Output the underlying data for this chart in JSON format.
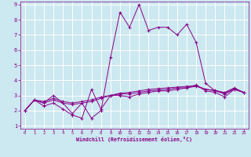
{
  "xlabel": "Windchill (Refroidissement éolien,°C)",
  "xlim": [
    -0.5,
    23.5
  ],
  "ylim": [
    0.8,
    9.2
  ],
  "xticks": [
    0,
    1,
    2,
    3,
    4,
    5,
    6,
    7,
    8,
    9,
    10,
    11,
    12,
    13,
    14,
    15,
    16,
    17,
    18,
    19,
    20,
    21,
    22,
    23
  ],
  "yticks": [
    1,
    2,
    3,
    4,
    5,
    6,
    7,
    8,
    9
  ],
  "bg_color": "#cce8f0",
  "grid_color": "#ffffff",
  "line_color": "#880088",
  "series": [
    [
      2.0,
      2.7,
      2.3,
      2.5,
      2.1,
      1.7,
      1.5,
      3.4,
      2.1,
      3.0,
      3.0,
      2.9,
      3.1,
      3.2,
      3.3,
      3.3,
      3.4,
      3.5,
      3.7,
      3.3,
      3.2,
      2.9,
      3.4,
      3.2
    ],
    [
      2.0,
      2.7,
      2.5,
      2.7,
      2.5,
      2.4,
      2.5,
      2.6,
      2.8,
      3.0,
      3.1,
      3.1,
      3.2,
      3.3,
      3.35,
      3.4,
      3.5,
      3.5,
      3.6,
      3.4,
      3.3,
      3.1,
      3.4,
      3.2
    ],
    [
      2.0,
      2.7,
      2.6,
      2.8,
      2.6,
      2.5,
      2.6,
      2.7,
      2.9,
      3.0,
      3.15,
      3.2,
      3.3,
      3.4,
      3.45,
      3.5,
      3.55,
      3.6,
      3.65,
      3.4,
      3.35,
      3.15,
      3.45,
      3.2
    ],
    [
      2.0,
      2.7,
      2.5,
      3.0,
      2.5,
      1.8,
      2.5,
      1.5,
      2.0,
      5.5,
      8.5,
      7.5,
      9.0,
      7.3,
      7.5,
      7.5,
      7.0,
      7.7,
      6.5,
      3.8,
      3.3,
      3.2,
      3.5,
      3.2
    ]
  ]
}
